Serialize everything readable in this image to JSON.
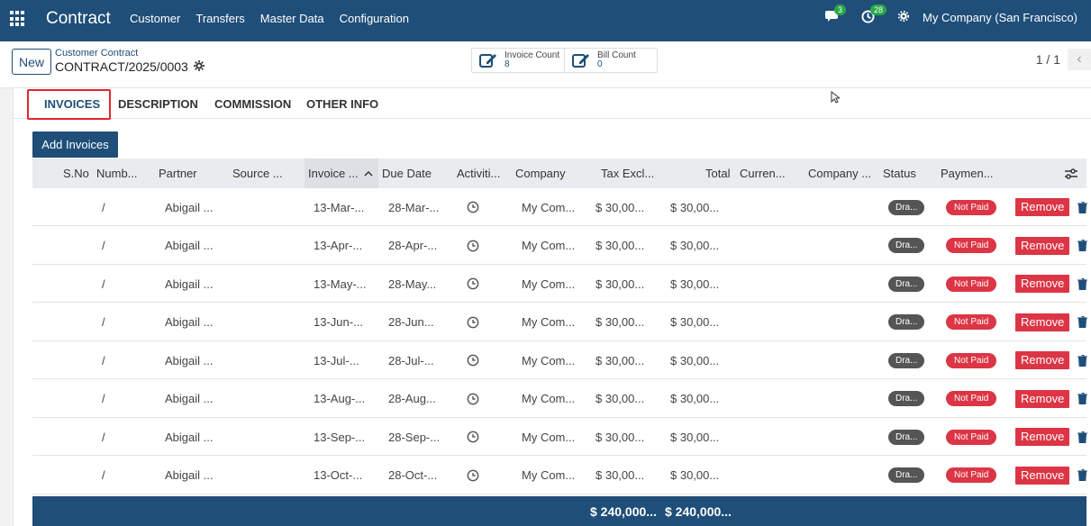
{
  "navbar": {
    "app_title": "Contract",
    "menu": [
      "Customer",
      "Transfers",
      "Master Data",
      "Configuration"
    ],
    "messages_count": "3",
    "activities_count": "28",
    "company": "My Company (San Francisco)"
  },
  "control_panel": {
    "new_label": "New",
    "breadcrumb_parent": "Customer Contract",
    "breadcrumb_current": "CONTRACT/2025/0003",
    "invoice_count_label": "Invoice Count",
    "invoice_count_value": "8",
    "bill_count_label": "Bill Count",
    "bill_count_value": "0",
    "pager": "1 / 1"
  },
  "tabs": [
    "INVOICES",
    "DESCRIPTION",
    "COMMISSION",
    "OTHER INFO"
  ],
  "add_invoices_label": "Add Invoices",
  "table": {
    "columns": [
      "S.No",
      "Numb...",
      "Partner",
      "Source ...",
      "Invoice ...",
      "Due Date",
      "Activiti...",
      "Company",
      "Tax Excl...",
      "Total",
      "Curren...",
      "Company ...",
      "Status",
      "Paymen..."
    ],
    "rows": [
      {
        "number": "/",
        "partner": "Abigail ...",
        "invoice_date": "13-Mar-...",
        "due_date": "28-Mar-...",
        "company": "My Com...",
        "tax_excl": "$ 30,00...",
        "total": "$ 30,00...",
        "status": "Dra...",
        "payment": "Not Paid",
        "remove": "Remove"
      },
      {
        "number": "/",
        "partner": "Abigail ...",
        "invoice_date": "13-Apr-...",
        "due_date": "28-Apr-...",
        "company": "My Com...",
        "tax_excl": "$ 30,00...",
        "total": "$ 30,00...",
        "status": "Dra...",
        "payment": "Not Paid",
        "remove": "Remove"
      },
      {
        "number": "/",
        "partner": "Abigail ...",
        "invoice_date": "13-May-...",
        "due_date": "28-May...",
        "company": "My Com...",
        "tax_excl": "$ 30,00...",
        "total": "$ 30,00...",
        "status": "Dra...",
        "payment": "Not Paid",
        "remove": "Remove"
      },
      {
        "number": "/",
        "partner": "Abigail ...",
        "invoice_date": "13-Jun-...",
        "due_date": "28-Jun...",
        "company": "My Com...",
        "tax_excl": "$ 30,00...",
        "total": "$ 30,00...",
        "status": "Dra...",
        "payment": "Not Paid",
        "remove": "Remove"
      },
      {
        "number": "/",
        "partner": "Abigail ...",
        "invoice_date": "13-Jul-...",
        "due_date": "28-Jul-...",
        "company": "My Com...",
        "tax_excl": "$ 30,00...",
        "total": "$ 30,00...",
        "status": "Dra...",
        "payment": "Not Paid",
        "remove": "Remove"
      },
      {
        "number": "/",
        "partner": "Abigail ...",
        "invoice_date": "13-Aug-...",
        "due_date": "28-Aug...",
        "company": "My Com...",
        "tax_excl": "$ 30,00...",
        "total": "$ 30,00...",
        "status": "Dra...",
        "payment": "Not Paid",
        "remove": "Remove"
      },
      {
        "number": "/",
        "partner": "Abigail ...",
        "invoice_date": "13-Sep-...",
        "due_date": "28-Sep-...",
        "company": "My Com...",
        "tax_excl": "$ 30,00...",
        "total": "$ 30,00...",
        "status": "Dra...",
        "payment": "Not Paid",
        "remove": "Remove"
      },
      {
        "number": "/",
        "partner": "Abigail ...",
        "invoice_date": "13-Oct-...",
        "due_date": "28-Oct-...",
        "company": "My Com...",
        "tax_excl": "$ 30,00...",
        "total": "$ 30,00...",
        "status": "Dra...",
        "payment": "Not Paid",
        "remove": "Remove"
      }
    ],
    "totals": {
      "tax_excl": "$ 240,000...",
      "total": "$ 240,000..."
    }
  },
  "colors": {
    "primary": "#1f4e79",
    "danger": "#dc3545",
    "draft": "#555555",
    "badge_green": "#28a745"
  },
  "icons": [
    "apps-icon",
    "chat-icon",
    "activity-clock-icon",
    "settings-icon",
    "gear-icon",
    "edit-icon",
    "chevron-left-icon",
    "sort-up-icon",
    "column-settings-icon",
    "clock-icon",
    "trash-icon"
  ]
}
